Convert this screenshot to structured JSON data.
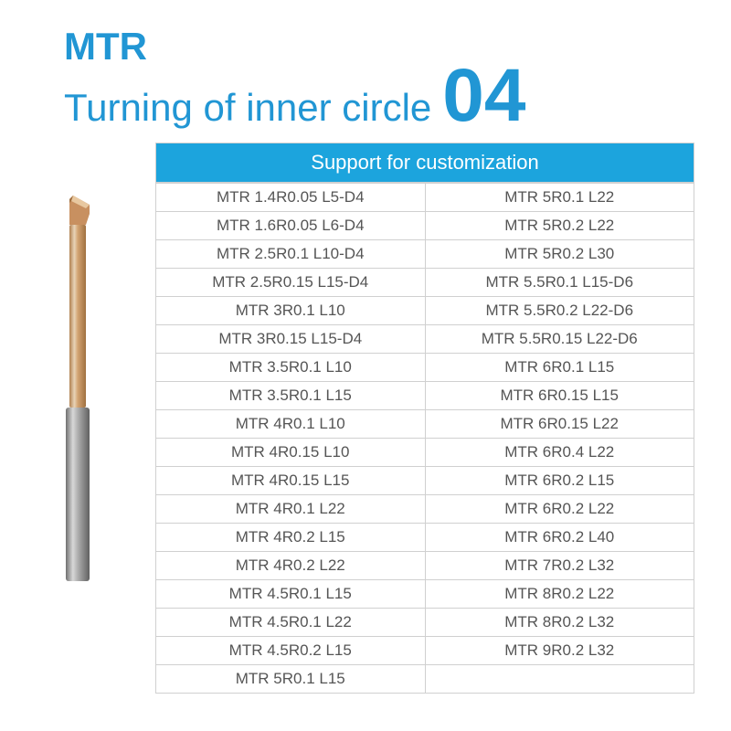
{
  "header": {
    "line1": "MTR",
    "line2": "Turning of inner circle",
    "number": "04",
    "text_color": "#2196d4"
  },
  "table": {
    "header_text": "Support for customization",
    "header_bg": "#1ca4dd",
    "header_text_color": "#ffffff",
    "border_color": "#d0d0d0",
    "cell_text_color": "#555555",
    "rows": [
      {
        "left": "MTR 1.4R0.05 L5-D4",
        "right": "MTR 5R0.1 L22"
      },
      {
        "left": "MTR 1.6R0.05 L6-D4",
        "right": "MTR 5R0.2 L22"
      },
      {
        "left": "MTR 2.5R0.1 L10-D4",
        "right": "MTR 5R0.2 L30"
      },
      {
        "left": "MTR 2.5R0.15 L15-D4",
        "right": "MTR 5.5R0.1 L15-D6"
      },
      {
        "left": "MTR 3R0.1 L10",
        "right": "MTR 5.5R0.2 L22-D6"
      },
      {
        "left": "MTR 3R0.15 L15-D4",
        "right": "MTR 5.5R0.15 L22-D6"
      },
      {
        "left": "MTR 3.5R0.1 L10",
        "right": "MTR 6R0.1 L15"
      },
      {
        "left": "MTR 3.5R0.1 L15",
        "right": "MTR 6R0.15 L15"
      },
      {
        "left": "MTR 4R0.1 L10",
        "right": "MTR 6R0.15 L22"
      },
      {
        "left": "MTR 4R0.15 L10",
        "right": "MTR 6R0.4 L22"
      },
      {
        "left": "MTR 4R0.15 L15",
        "right": "MTR 6R0.2 L15"
      },
      {
        "left": "MTR 4R0.1 L22",
        "right": "MTR 6R0.2 L22"
      },
      {
        "left": "MTR 4R0.2 L15",
        "right": "MTR 6R0.2 L40"
      },
      {
        "left": "MTR 4R0.2 L22",
        "right": "MTR 7R0.2 L32"
      },
      {
        "left": "MTR 4.5R0.1 L15",
        "right": "MTR 8R0.2 L22"
      },
      {
        "left": "MTR 4.5R0.1 L22",
        "right": "MTR 8R0.2 L32"
      },
      {
        "left": "MTR 4.5R0.2 L15",
        "right": "MTR 9R0.2 L32"
      },
      {
        "left": "MTR 5R0.1 L15",
        "right": ""
      }
    ]
  },
  "tool": {
    "tip_color": "#c89060",
    "shaft_upper_color": "#d4a574",
    "shaft_lower_color": "#9e9e9e",
    "highlight_color": "#e8d4b8"
  }
}
